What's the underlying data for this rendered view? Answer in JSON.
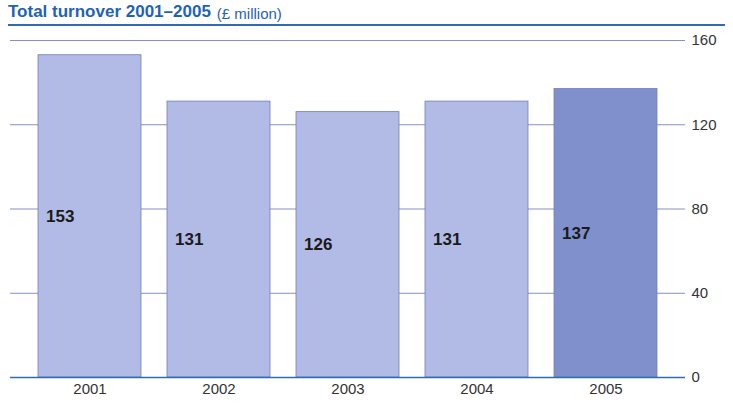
{
  "chart_data": {
    "type": "bar",
    "title": "Total turnover 2001–2005",
    "subtitle": "(£ million)",
    "categories": [
      "2001",
      "2002",
      "2003",
      "2004",
      "2005"
    ],
    "values": [
      153,
      131,
      126,
      131,
      137
    ],
    "colors": [
      "#b2bbe6",
      "#b2bbe6",
      "#b2bbe6",
      "#b2bbe6",
      "#7f90cc"
    ],
    "ylim": [
      0,
      160
    ],
    "yticks": [
      0,
      40,
      80,
      120,
      160
    ],
    "grid": true,
    "data_labels": true
  }
}
